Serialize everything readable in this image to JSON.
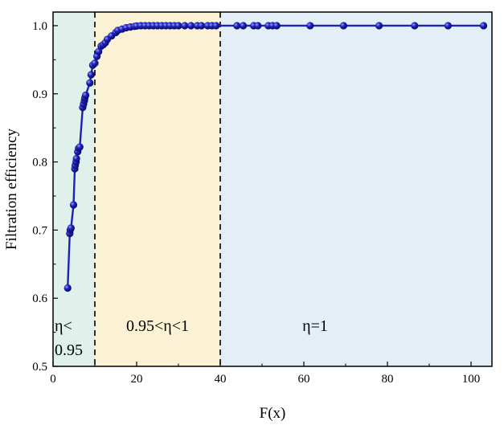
{
  "chart_data": {
    "type": "scatter",
    "xlabel": "F(x)",
    "ylabel": "Filtration efficiency",
    "xlim": [
      0,
      105
    ],
    "ylim": [
      0.5,
      1.02
    ],
    "xticks": [
      "0",
      "20",
      "40",
      "60",
      "80",
      "100"
    ],
    "yticks": [
      "0.5",
      "0.6",
      "0.7",
      "0.8",
      "0.9",
      "1.0"
    ],
    "xtick_values": [
      0,
      20,
      40,
      60,
      80,
      100
    ],
    "ytick_values": [
      0.5,
      0.6,
      0.7,
      0.8,
      0.9,
      1.0
    ],
    "grid": false,
    "legend": "none",
    "regions": [
      {
        "x_from": 0,
        "x_to": 10,
        "label": "η<",
        "label_line2": "0.95",
        "color": "#dff1ea"
      },
      {
        "x_from": 10,
        "x_to": 40,
        "label": "0.95<η<1",
        "color": "#fbf1d4"
      },
      {
        "x_from": 40,
        "x_to": 105,
        "label": "η=1",
        "color": "#e4eef7"
      }
    ],
    "boundaries": [
      10,
      40
    ],
    "series": [
      {
        "color": "#1f22b8",
        "x": [
          3.5,
          4.0,
          4.1,
          4.3,
          4.9,
          5.2,
          5.3,
          5.5,
          5.6,
          5.9,
          6.1,
          6.4,
          7.1,
          7.3,
          7.5,
          7.6,
          7.8,
          8.8,
          9.1,
          9.5,
          10.0,
          10.5,
          10.9,
          11.5,
          12.0,
          12.5,
          13.0,
          14.0,
          15.0,
          15.5,
          16.5,
          17.5,
          18.5,
          19.5,
          20.0,
          21.0,
          22.0,
          23.0,
          24.0,
          25.0,
          26.0,
          27.0,
          28.0,
          29.0,
          30.0,
          31.5,
          33.0,
          34.5,
          35.5,
          37.0,
          38.0,
          39.0,
          44.0,
          45.5,
          48.0,
          49.0,
          51.5,
          52.5,
          53.5,
          61.5,
          69.5,
          78.0,
          86.5,
          94.5,
          103.0
        ],
        "y": [
          0.615,
          0.695,
          0.7,
          0.703,
          0.737,
          0.79,
          0.795,
          0.8,
          0.805,
          0.815,
          0.82,
          0.822,
          0.88,
          0.885,
          0.89,
          0.894,
          0.898,
          0.916,
          0.928,
          0.942,
          0.945,
          0.955,
          0.962,
          0.97,
          0.972,
          0.975,
          0.98,
          0.985,
          0.99,
          0.993,
          0.995,
          0.997,
          0.998,
          0.999,
          0.9995,
          1.0,
          1.0,
          1.0,
          1.0,
          1.0,
          1.0,
          1.0,
          1.0,
          1.0,
          1.0,
          1.0,
          1.0,
          1.0,
          1.0,
          1.0,
          1.0,
          1.0,
          1.0,
          1.0,
          1.0,
          1.0,
          1.0,
          1.0,
          1.0,
          1.0,
          1.0,
          1.0,
          1.0,
          1.0,
          1.0
        ]
      }
    ]
  }
}
